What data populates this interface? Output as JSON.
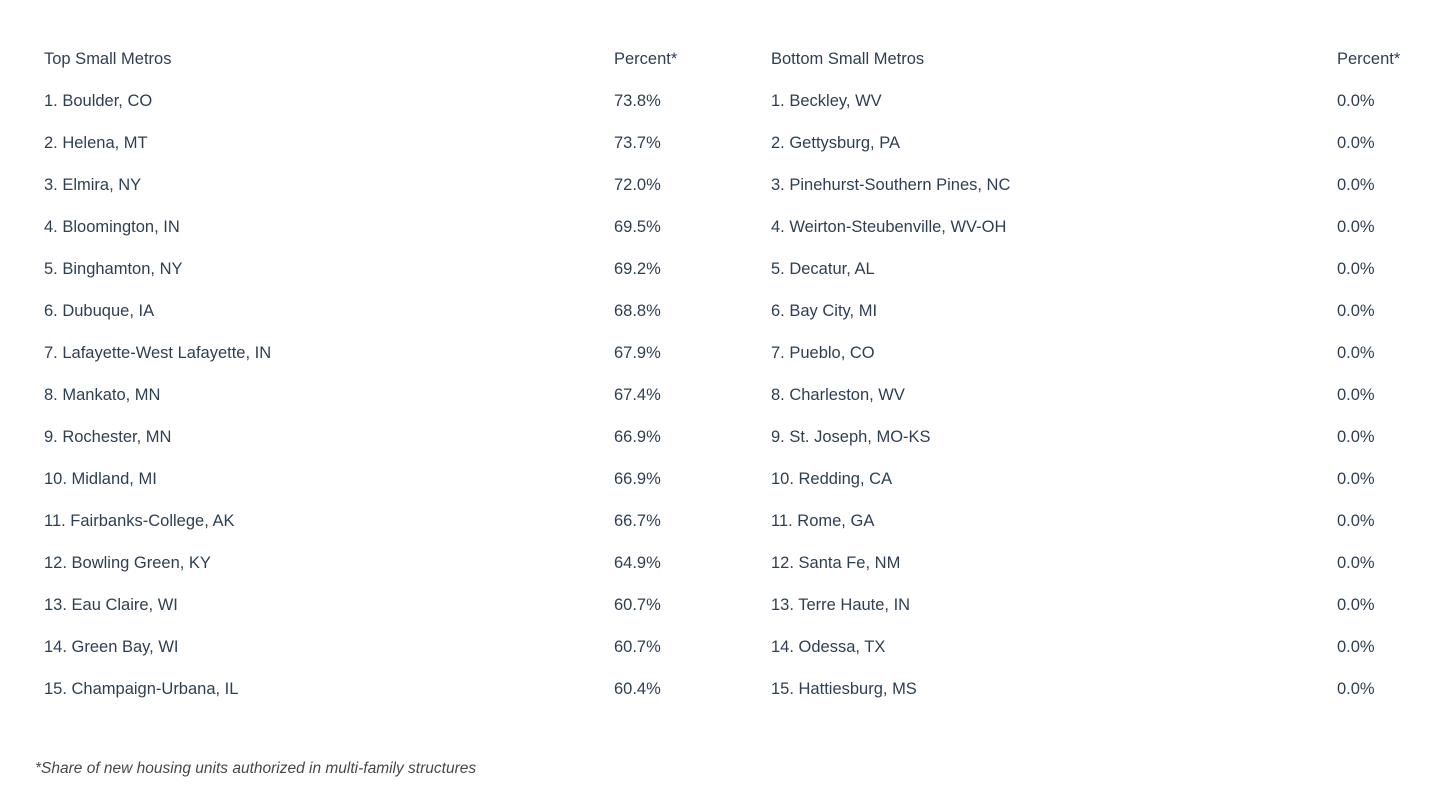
{
  "chart_data": {
    "type": "table",
    "layout": "two-panel ranked list, white background, no gridlines",
    "columns": [
      "Top Small Metros",
      "Percent*",
      "Bottom Small Metros",
      "Percent*"
    ],
    "footnote": "*Share of new housing units authorized in multi-family structures",
    "colors": {
      "text": "#2e3f54",
      "footnote_text": "#484848",
      "background": "#ffffff"
    },
    "panels": [
      {
        "header_name": "Top Small Metros",
        "header_value": "Percent*",
        "rows": [
          {
            "rank": 1,
            "metro": "Boulder, CO",
            "percent": 73.8,
            "label": "1. Boulder, CO",
            "value": "73.8%"
          },
          {
            "rank": 2,
            "metro": "Helena, MT",
            "percent": 73.7,
            "label": "2. Helena, MT",
            "value": "73.7%"
          },
          {
            "rank": 3,
            "metro": "Elmira, NY",
            "percent": 72.0,
            "label": "3. Elmira, NY",
            "value": "72.0%"
          },
          {
            "rank": 4,
            "metro": "Bloomington, IN",
            "percent": 69.5,
            "label": "4. Bloomington, IN",
            "value": "69.5%"
          },
          {
            "rank": 5,
            "metro": "Binghamton, NY",
            "percent": 69.2,
            "label": "5. Binghamton, NY",
            "value": "69.2%"
          },
          {
            "rank": 6,
            "metro": "Dubuque, IA",
            "percent": 68.8,
            "label": "6. Dubuque, IA",
            "value": "68.8%"
          },
          {
            "rank": 7,
            "metro": "Lafayette-West Lafayette, IN",
            "percent": 67.9,
            "label": "7. Lafayette-West Lafayette, IN",
            "value": "67.9%"
          },
          {
            "rank": 8,
            "metro": "Mankato, MN",
            "percent": 67.4,
            "label": "8. Mankato, MN",
            "value": "67.4%"
          },
          {
            "rank": 9,
            "metro": "Rochester, MN",
            "percent": 66.9,
            "label": "9. Rochester, MN",
            "value": "66.9%"
          },
          {
            "rank": 10,
            "metro": "Midland, MI",
            "percent": 66.9,
            "label": "10. Midland, MI",
            "value": "66.9%"
          },
          {
            "rank": 11,
            "metro": "Fairbanks-College, AK",
            "percent": 66.7,
            "label": "11. Fairbanks-College, AK",
            "value": "66.7%"
          },
          {
            "rank": 12,
            "metro": "Bowling Green, KY",
            "percent": 64.9,
            "label": "12. Bowling Green, KY",
            "value": "64.9%"
          },
          {
            "rank": 13,
            "metro": "Eau Claire, WI",
            "percent": 60.7,
            "label": "13. Eau Claire, WI",
            "value": "60.7%"
          },
          {
            "rank": 14,
            "metro": "Green Bay, WI",
            "percent": 60.7,
            "label": "14. Green Bay, WI",
            "value": "60.7%"
          },
          {
            "rank": 15,
            "metro": "Champaign-Urbana, IL",
            "percent": 60.4,
            "label": "15. Champaign-Urbana, IL",
            "value": "60.4%"
          }
        ]
      },
      {
        "header_name": "Bottom Small Metros",
        "header_value": "Percent*",
        "rows": [
          {
            "rank": 1,
            "metro": "Beckley, WV",
            "percent": 0.0,
            "label": "1. Beckley, WV",
            "value": "0.0%"
          },
          {
            "rank": 2,
            "metro": "Gettysburg, PA",
            "percent": 0.0,
            "label": "2. Gettysburg, PA",
            "value": "0.0%"
          },
          {
            "rank": 3,
            "metro": "Pinehurst-Southern Pines, NC",
            "percent": 0.0,
            "label": "3. Pinehurst-Southern Pines, NC",
            "value": "0.0%"
          },
          {
            "rank": 4,
            "metro": "Weirton-Steubenville, WV-OH",
            "percent": 0.0,
            "label": "4. Weirton-Steubenville, WV-OH",
            "value": "0.0%"
          },
          {
            "rank": 5,
            "metro": "Decatur, AL",
            "percent": 0.0,
            "label": "5. Decatur, AL",
            "value": "0.0%"
          },
          {
            "rank": 6,
            "metro": "Bay City, MI",
            "percent": 0.0,
            "label": "6. Bay City, MI",
            "value": "0.0%"
          },
          {
            "rank": 7,
            "metro": "Pueblo, CO",
            "percent": 0.0,
            "label": "7. Pueblo, CO",
            "value": "0.0%"
          },
          {
            "rank": 8,
            "metro": "Charleston, WV",
            "percent": 0.0,
            "label": "8. Charleston, WV",
            "value": "0.0%"
          },
          {
            "rank": 9,
            "metro": "St. Joseph, MO-KS",
            "percent": 0.0,
            "label": "9. St. Joseph, MO-KS",
            "value": "0.0%"
          },
          {
            "rank": 10,
            "metro": "Redding, CA",
            "percent": 0.0,
            "label": "10. Redding, CA",
            "value": "0.0%"
          },
          {
            "rank": 11,
            "metro": "Rome, GA",
            "percent": 0.0,
            "label": "11. Rome, GA",
            "value": "0.0%"
          },
          {
            "rank": 12,
            "metro": "Santa Fe, NM",
            "percent": 0.0,
            "label": "12. Santa Fe, NM",
            "value": "0.0%"
          },
          {
            "rank": 13,
            "metro": "Terre Haute, IN",
            "percent": 0.0,
            "label": "13. Terre Haute, IN",
            "value": "0.0%"
          },
          {
            "rank": 14,
            "metro": "Odessa, TX",
            "percent": 0.0,
            "label": "14. Odessa, TX",
            "value": "0.0%"
          },
          {
            "rank": 15,
            "metro": "Hattiesburg, MS",
            "percent": 0.0,
            "label": "15. Hattiesburg, MS",
            "value": "0.0%"
          }
        ]
      }
    ]
  }
}
